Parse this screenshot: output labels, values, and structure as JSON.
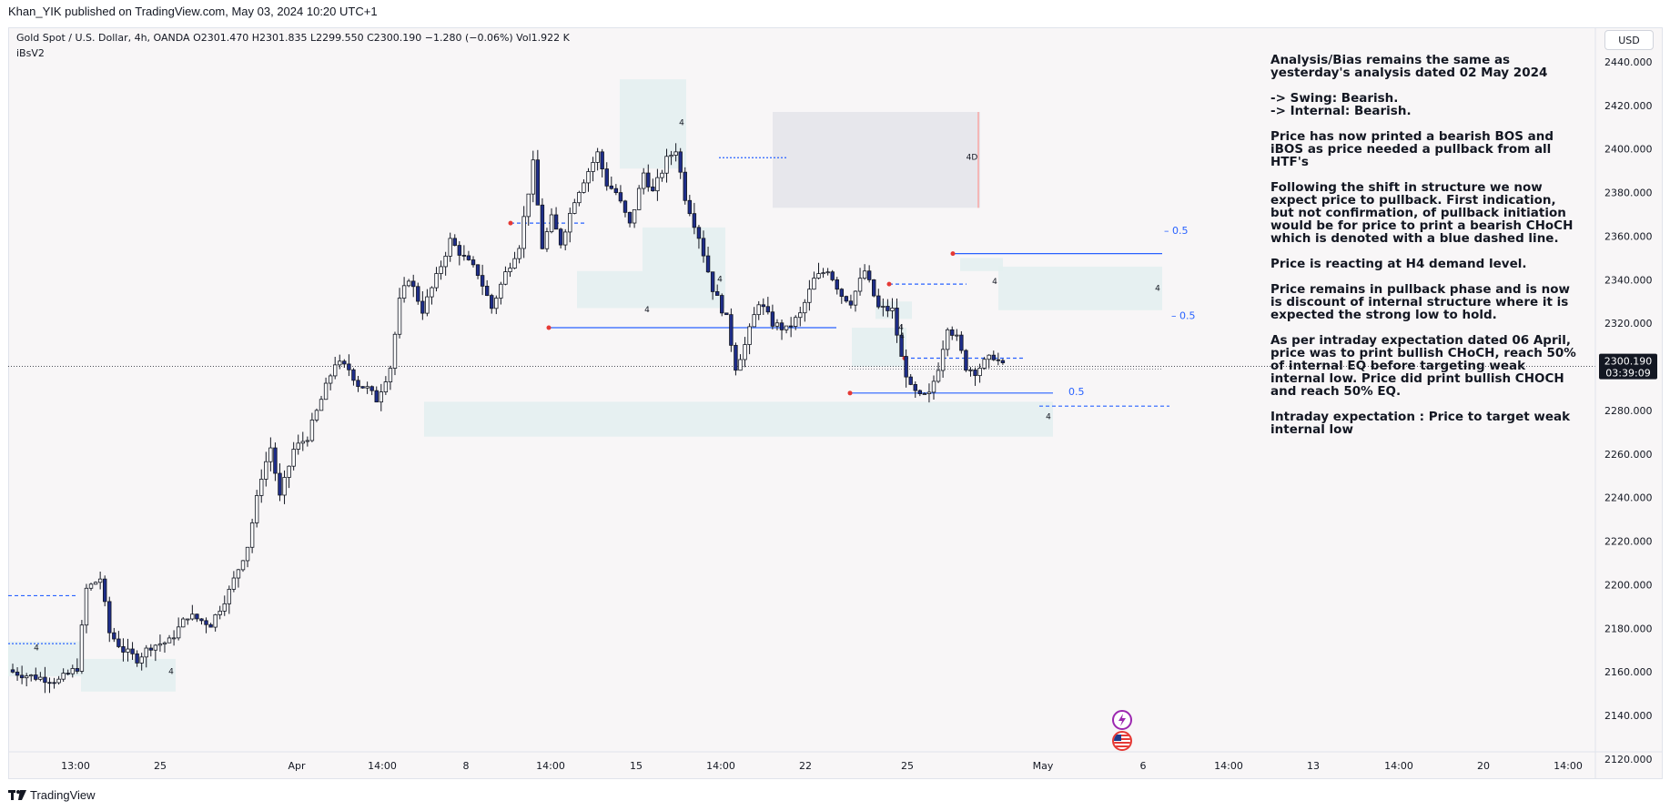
{
  "header": {
    "publisher_text": "Khan_YIK published on TradingView.com, May 03, 2024 10:20 UTC+1"
  },
  "symbol": {
    "line": "Gold Spot / U.S. Dollar, 4h, OANDA  O2301.470  H2301.835  L2299.550  C2300.190  −1.280 (−0.06%)  Vol1.922 K",
    "indicator": "iBsV2"
  },
  "currency_button": "USD",
  "colors": {
    "bull_body": "#ffffff",
    "bear_body": "#1e2d8a",
    "candle_outline": "#131722",
    "zone_fill": "#e3f0f0",
    "supply_fill": "#e4e5ea",
    "structure_line": "#2962ff",
    "swing_point": "#e53935",
    "background": "#f8f6f7"
  },
  "price_badge": {
    "price": "2300.190",
    "countdown": "03:39:09"
  },
  "analysis_text": [
    "Analysis/Bias remains the same as yesterday's analysis dated 02 May 2024",
    "-> Swing:  Bearish.\n-> Internal:  Bearish.",
    "Price has now printed a bearish BOS and iBOS as price needed a pullback from all HTF's",
    "Following the shift in structure we now expect price to pullback.  First indication, but not confirmation, of pullback initiation would be for price to print a bearish CHoCH which is denoted with a blue dashed line.",
    "Price is reacting at H4 demand level.",
    "Price remains in pullback phase and is now is discount of internal structure where it is expected the strong low to hold.",
    "As per intraday expectation dated 06 April, price was to print bullish CHoCH, reach 50% of internal EQ before targeting weak internal low. Price did print bullish CHOCH and reach 50% EQ.",
    "Intraday expectation : Price to target weak internal low"
  ],
  "zone_labels": [
    "4",
    "4",
    "4",
    "4",
    "4",
    "4",
    "4D",
    "4",
    "4",
    "4",
    "4"
  ],
  "eq_labels": [
    "– 0.5",
    "– 0.5",
    "0.5"
  ],
  "footer": {
    "logo_text": "TradingView"
  },
  "event_icons": [
    "lightning-icon",
    "us-flag-icon"
  ],
  "chart_data": {
    "type": "candlestick",
    "title": "Gold Spot / U.S. Dollar, 4h, OANDA",
    "timeframe": "4h",
    "ylim": [
      2120,
      2450
    ],
    "y_ticks": [
      2120,
      2140,
      2160,
      2180,
      2200,
      2220,
      2240,
      2260,
      2280,
      2300,
      2320,
      2340,
      2360,
      2380,
      2400,
      2420,
      2440
    ],
    "y_tick_labels": [
      "2120.000",
      "2140.000",
      "2160.000",
      "2180.000",
      "2200.000",
      "2220.000",
      "2240.000",
      "2260.000",
      "2280.000",
      "2300.000",
      "2320.000",
      "2340.000",
      "2360.000",
      "2380.000",
      "2400.000",
      "2420.000",
      "2440.000"
    ],
    "x_tick_labels": [
      "13:00",
      "25",
      "Apr",
      "14:00",
      "8",
      "14:00",
      "15",
      "14:00",
      "22",
      "25",
      "May",
      "6",
      "14:00",
      "13",
      "14:00",
      "20",
      "14:00"
    ],
    "last_price": 2300.19,
    "grid": false,
    "waypoints": [
      [
        0,
        2160
      ],
      [
        4,
        2158
      ],
      [
        10,
        2156
      ],
      [
        14,
        2162
      ],
      [
        16,
        2198
      ],
      [
        19,
        2203
      ],
      [
        21,
        2178
      ],
      [
        24,
        2170
      ],
      [
        27,
        2166
      ],
      [
        30,
        2172
      ],
      [
        34,
        2174
      ],
      [
        38,
        2186
      ],
      [
        43,
        2182
      ],
      [
        47,
        2197
      ],
      [
        51,
        2218
      ],
      [
        54,
        2250
      ],
      [
        56,
        2263
      ],
      [
        58,
        2240
      ],
      [
        61,
        2262
      ],
      [
        64,
        2268
      ],
      [
        67,
        2285
      ],
      [
        70,
        2302
      ],
      [
        73,
        2299
      ],
      [
        75,
        2292
      ],
      [
        77,
        2290
      ],
      [
        79,
        2285
      ],
      [
        82,
        2300
      ],
      [
        84,
        2330
      ],
      [
        86,
        2341
      ],
      [
        89,
        2326
      ],
      [
        92,
        2341
      ],
      [
        95,
        2358
      ],
      [
        98,
        2350
      ],
      [
        101,
        2343
      ],
      [
        104,
        2327
      ],
      [
        107,
        2343
      ],
      [
        110,
        2356
      ],
      [
        113,
        2393
      ],
      [
        115,
        2355
      ],
      [
        117,
        2368
      ],
      [
        119,
        2357
      ],
      [
        122,
        2377
      ],
      [
        124,
        2386
      ],
      [
        127,
        2398
      ],
      [
        129,
        2384
      ],
      [
        131,
        2380
      ],
      [
        134,
        2365
      ],
      [
        137,
        2389
      ],
      [
        139,
        2380
      ],
      [
        142,
        2395
      ],
      [
        144,
        2400
      ],
      [
        146,
        2378
      ],
      [
        149,
        2360
      ],
      [
        152,
        2336
      ],
      [
        155,
        2322
      ],
      [
        157,
        2300
      ],
      [
        159,
        2310
      ],
      [
        162,
        2330
      ],
      [
        165,
        2320
      ],
      [
        168,
        2317
      ],
      [
        171,
        2324
      ],
      [
        174,
        2340
      ],
      [
        177,
        2345
      ],
      [
        180,
        2333
      ],
      [
        182,
        2330
      ],
      [
        185,
        2344
      ],
      [
        188,
        2327
      ],
      [
        191,
        2326
      ],
      [
        193,
        2304
      ],
      [
        195,
        2290
      ],
      [
        197,
        2286
      ],
      [
        199,
        2287
      ],
      [
        201,
        2300
      ],
      [
        203,
        2319
      ],
      [
        205,
        2313
      ],
      [
        207,
        2300
      ],
      [
        209,
        2298
      ],
      [
        211,
        2302
      ],
      [
        213,
        2305
      ],
      [
        215,
        2300.19
      ]
    ],
    "series": [
      {
        "name": "",
        "visible_range": [
          2149,
          2432
        ],
        "open": 2301.47,
        "high": 2301.835,
        "low": 2299.55,
        "close": 2300.19,
        "change": -1.28,
        "change_pct": -0.06,
        "volume": "1.922 K"
      }
    ]
  }
}
